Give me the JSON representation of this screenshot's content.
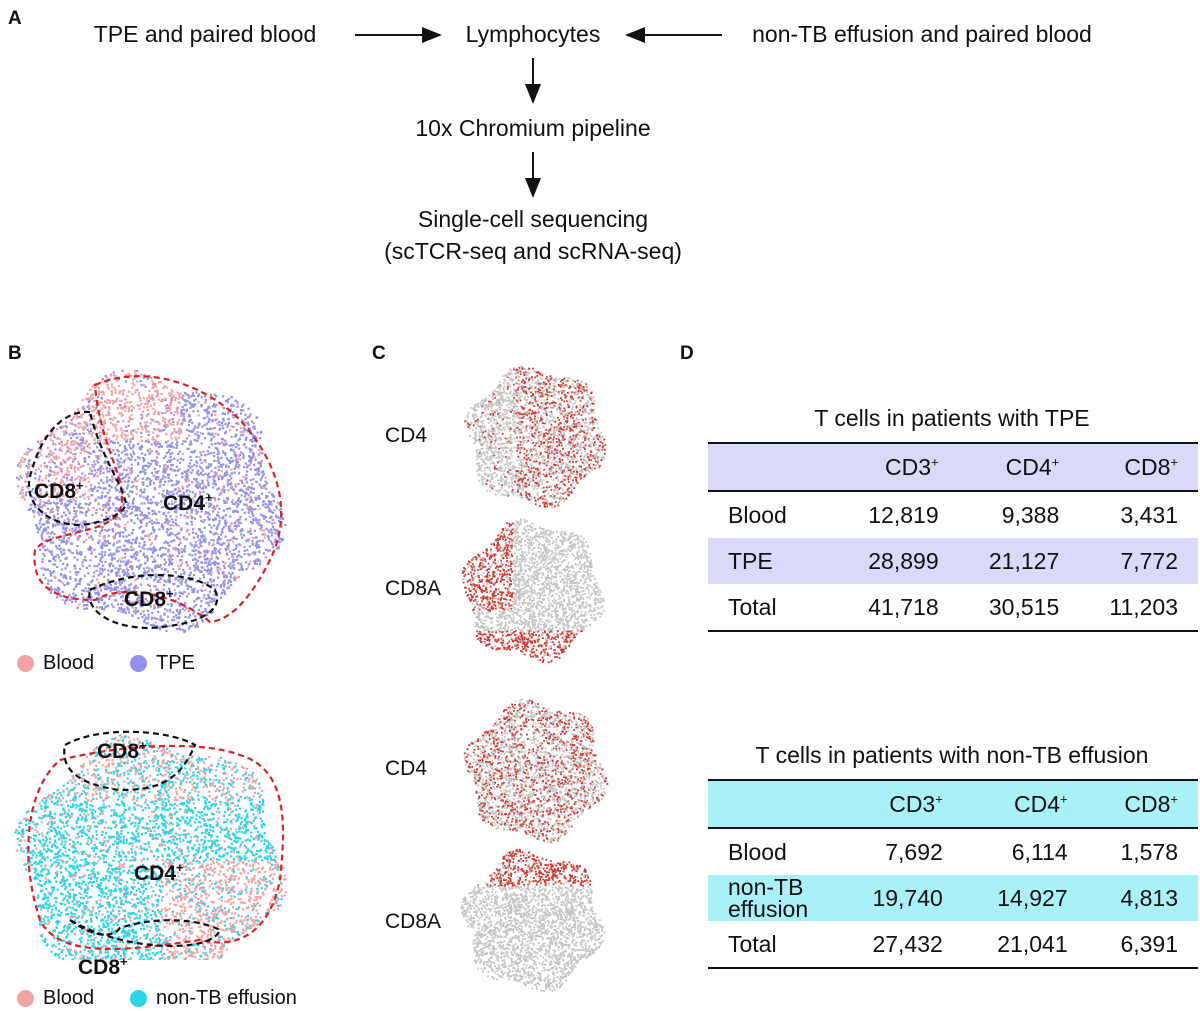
{
  "panels": {
    "a": "A",
    "b": "B",
    "c": "C",
    "d": "D"
  },
  "flow": {
    "left": "TPE and paired blood",
    "center": "Lymphocytes",
    "right": "non-TB effusion and paired blood",
    "step2": "10x Chromium pipeline",
    "step3_line1": "Single-cell sequencing",
    "step3_line2": "(scTCR-seq and scRNA-seq)"
  },
  "panel_b": {
    "top": {
      "cd8_label": "CD8",
      "cd4_label": "CD4",
      "cd8_label2": "CD8",
      "sup": "+",
      "legend": [
        "Blood",
        "TPE"
      ]
    },
    "bottom": {
      "cd8_label": "CD8",
      "cd4_label": "CD4",
      "cd8_label2": "CD8",
      "sup": "+",
      "legend": [
        "Blood",
        "non-TB effusion"
      ]
    },
    "colors": {
      "blood": "#f4a3a3",
      "tpe": "#9292ec",
      "nontb": "#2cd6ea",
      "cd4_outline": "#e02020",
      "cd8_outline": "#111111"
    }
  },
  "panel_c": {
    "genes": [
      "CD4",
      "CD8A",
      "CD4",
      "CD8A"
    ],
    "colors": {
      "expressed": "#d2362e",
      "background": "#c4c4c4"
    }
  },
  "panel_d": {
    "tables": [
      {
        "title": "T cells in patients with TPE",
        "header_color": "#d9d9fa",
        "columns": [
          "CD3",
          "CD4",
          "CD8"
        ],
        "sup": "+",
        "rows": [
          [
            "Blood",
            "12,819",
            "9,388",
            "3,431"
          ],
          [
            "TPE",
            "28,899",
            "21,127",
            "7,772"
          ],
          [
            "Total",
            "41,718",
            "30,515",
            "11,203"
          ]
        ]
      },
      {
        "title": "T cells in patients with non-TB effusion",
        "header_color": "#a9f0f9",
        "columns": [
          "CD3",
          "CD4",
          "CD8"
        ],
        "sup": "+",
        "rows": [
          [
            "Blood",
            "7,692",
            "6,114",
            "1,578"
          ],
          [
            "non-TB effusion",
            "19,740",
            "14,927",
            "4,813"
          ],
          [
            "Total",
            "27,432",
            "21,041",
            "6,391"
          ]
        ]
      }
    ]
  }
}
